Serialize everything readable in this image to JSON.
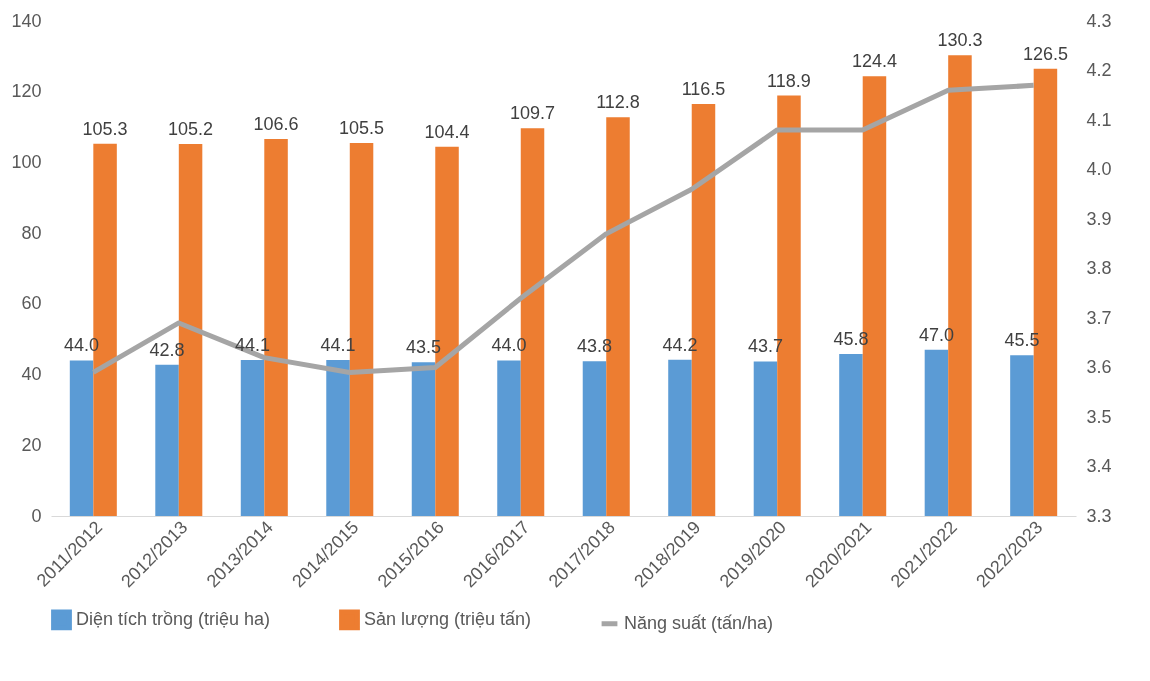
{
  "chart_data": {
    "type": "bar",
    "categories": [
      "2011/2012",
      "2012/2013",
      "2013/2014",
      "2014/2015",
      "2015/2016",
      "2016/2017",
      "2017/2018",
      "2018/2019",
      "2019/2020",
      "2020/2021",
      "2021/2022",
      "2022/2023"
    ],
    "series": [
      {
        "name": "Diện tích trồng (triệu ha)",
        "color": "#5b9bd5",
        "values": [
          44.0,
          42.8,
          44.1,
          44.1,
          43.5,
          44.0,
          43.8,
          44.2,
          43.7,
          45.8,
          47.0,
          45.5
        ],
        "value_labels": [
          "44.0",
          "42.8",
          "44.1",
          "44.1",
          "43.5",
          "44.0",
          "43.8",
          "44.2",
          "43.7",
          "45.8",
          "47.0",
          "45.5"
        ]
      },
      {
        "name": "Sản lượng (triệu tấn)",
        "color": "#ed7d31",
        "values": [
          105.3,
          105.2,
          106.6,
          105.5,
          104.4,
          109.7,
          112.8,
          116.5,
          118.9,
          124.4,
          130.3,
          126.5
        ],
        "value_labels": [
          "105.3",
          "105.2",
          "106.6",
          "105.5",
          "104.4",
          "109.7",
          "112.8",
          "116.5",
          "118.9",
          "124.4",
          "130.3",
          "126.5"
        ]
      },
      {
        "name": "Năng suất (tấn/ha)",
        "color": "#a5a5a5",
        "type": "line",
        "axis": "y2",
        "values": [
          3.59,
          3.69,
          3.62,
          3.59,
          3.6,
          3.74,
          3.87,
          3.96,
          4.08,
          4.08,
          4.16,
          4.17
        ]
      }
    ],
    "ylim": [
      0,
      140
    ],
    "yticks": [
      0,
      20,
      40,
      60,
      80,
      100,
      120,
      140
    ],
    "y2lim": [
      3.3,
      4.3
    ],
    "y2ticks": [
      3.3,
      3.4,
      3.5,
      3.6,
      3.7,
      3.8,
      3.9,
      {
        "value": 4,
        "label": "4.0"
      },
      4.1,
      4.2,
      4.3
    ],
    "grid": false,
    "legend": "bottom",
    "marker": "none"
  }
}
